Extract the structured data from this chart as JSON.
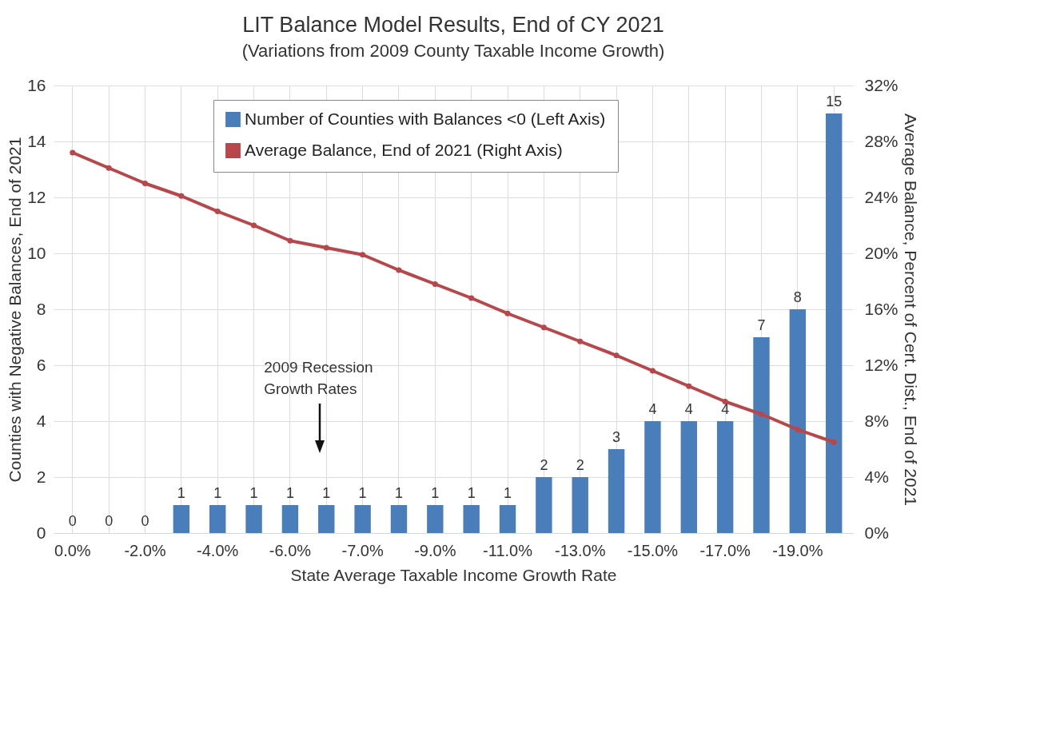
{
  "chart_data": {
    "type": "bar",
    "title": "LIT Balance Model Results, End of CY 2021",
    "subtitle": "(Variations from 2009 County Taxable Income Growth)",
    "xlabel": "State Average Taxable Income Growth Rate",
    "ylabel": "Counties with Negative Balances, End of 2021",
    "y2label": "Average Balance, Percent of Cert. Dist., End of 2021",
    "categories": [
      "0.0%",
      null,
      "-2.0%",
      null,
      "-4.0%",
      null,
      "-6.0%",
      null,
      "-7.0%",
      null,
      "-9.0%",
      null,
      "-11.0%",
      null,
      "-13.0%",
      null,
      "-15.0%",
      null,
      "-17.0%",
      null,
      "-19.0%",
      null
    ],
    "series": [
      {
        "name": "Number of Counties with Balances <0 (Left Axis)",
        "color": "#4a7ebb",
        "values": [
          0,
          0,
          0,
          1,
          1,
          1,
          1,
          1,
          1,
          1,
          1,
          1,
          1,
          2,
          2,
          3,
          4,
          4,
          4,
          7,
          8,
          15
        ],
        "value_labels": [
          "0",
          "0",
          "0",
          "1",
          "1",
          "1",
          "1",
          "1",
          "1",
          "1",
          "1",
          "1",
          "1",
          "2",
          "2",
          "3",
          "4",
          "4",
          "4",
          "7",
          "8",
          "15"
        ]
      },
      {
        "name": "Average Balance, End of 2021 (Right Axis)",
        "type": "line",
        "axis": "y2",
        "color": "#b7474a",
        "marker": "circle",
        "values": [
          27.2,
          26.1,
          25.0,
          24.1,
          23.0,
          22.0,
          20.9,
          20.4,
          19.9,
          18.8,
          17.8,
          16.8,
          15.7,
          14.7,
          13.7,
          12.7,
          11.6,
          10.5,
          9.4,
          8.5,
          7.4,
          6.5
        ]
      }
    ],
    "ylim": [
      0,
      16
    ],
    "yticks": [
      0,
      2,
      4,
      6,
      8,
      10,
      12,
      14,
      16
    ],
    "y2lim": [
      0,
      32
    ],
    "y2ticks": [
      {
        "value": 0,
        "label": "0%"
      },
      {
        "value": 4,
        "label": "4%"
      },
      {
        "value": 8,
        "label": "8%"
      },
      {
        "value": 12,
        "label": "12%"
      },
      {
        "value": 16,
        "label": "16%"
      },
      {
        "value": 20,
        "label": "20%"
      },
      {
        "value": 24,
        "label": "24%"
      },
      {
        "value": 28,
        "label": "28%"
      },
      {
        "value": 32,
        "label": "32%"
      }
    ],
    "annotations": [
      "2009 Recession Growth Rates"
    ],
    "grid": true,
    "legend": "top"
  }
}
